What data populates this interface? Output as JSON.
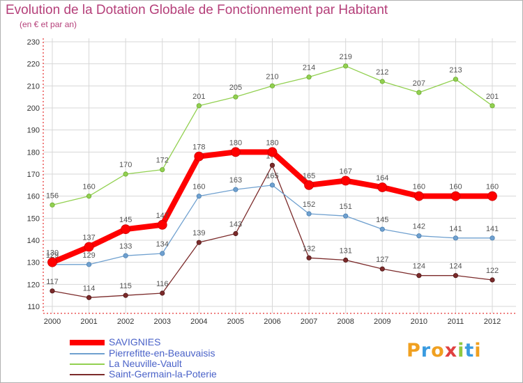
{
  "title": "Evolution de la Dotation Globale de Fonctionnement par Habitant",
  "subtitle": "(en € et par an)",
  "logo_text": "Proxiti",
  "colors": {
    "title": "#b5407a",
    "axis": "#e00000",
    "legend_text": "#4a62c8",
    "grid": "#d7d7d7"
  },
  "chart_data": {
    "type": "line",
    "title": "Evolution de la Dotation Globale de Fonctionnement par Habitant",
    "subtitle": "(en € et par an)",
    "categories": [
      "2000",
      "2001",
      "2002",
      "2003",
      "2004",
      "2005",
      "2006",
      "2007",
      "2008",
      "2009",
      "2010",
      "2011",
      "2012"
    ],
    "yticks": [
      110,
      120,
      130,
      140,
      150,
      160,
      170,
      180,
      190,
      200,
      210,
      220,
      230
    ],
    "ylim": [
      110,
      230
    ],
    "grid": true,
    "legend_position": "bottom-left",
    "series": [
      {
        "name": "SAVIGNIES",
        "color": "#ff0000",
        "values": [
          130,
          137,
          145,
          147,
          178,
          180,
          180,
          165,
          167,
          164,
          160,
          160,
          160
        ]
      },
      {
        "name": "Pierrefitte-en-Beauvaisis",
        "color": "#6fa0cf",
        "values": [
          129,
          129,
          133,
          134,
          160,
          163,
          165,
          152,
          151,
          145,
          142,
          141,
          141
        ]
      },
      {
        "name": "La Neuville-Vault",
        "color": "#92d050",
        "values": [
          156,
          160,
          170,
          172,
          201,
          205,
          210,
          214,
          219,
          212,
          207,
          213,
          201
        ]
      },
      {
        "name": "Saint-Germain-la-Poterie",
        "color": "#7b2a2a",
        "values": [
          117,
          114,
          115,
          116,
          139,
          143,
          174,
          132,
          131,
          127,
          124,
          124,
          122
        ]
      }
    ]
  }
}
